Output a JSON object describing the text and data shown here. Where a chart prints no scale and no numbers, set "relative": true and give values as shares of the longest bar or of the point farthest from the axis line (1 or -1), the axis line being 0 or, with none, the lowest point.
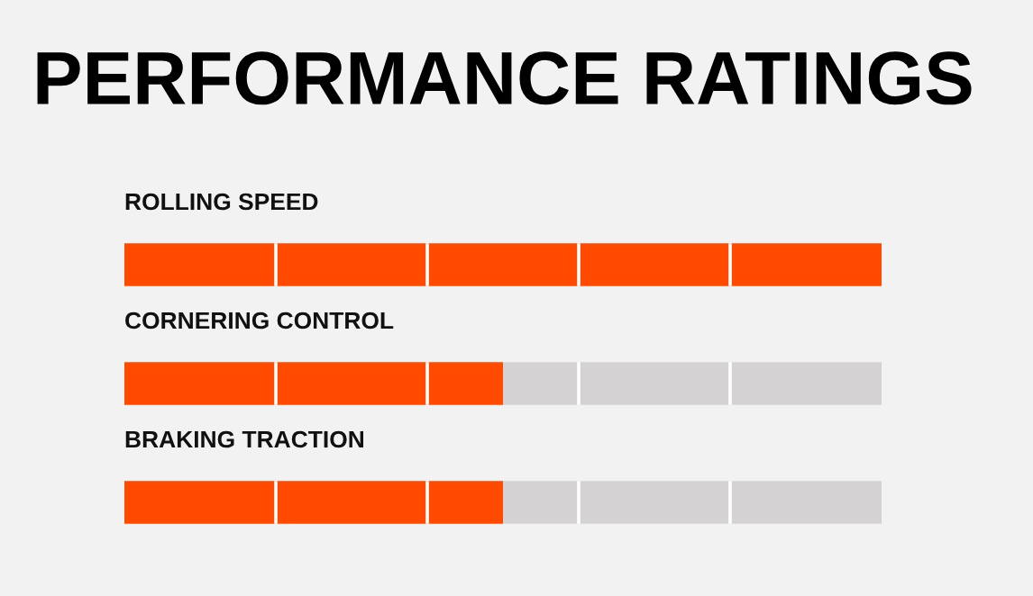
{
  "chart_data": {
    "type": "bar",
    "orientation": "horizontal",
    "stacked": true,
    "relative": true,
    "title": "PERFORMANCE RATINGS",
    "categories": [
      "ROLLING SPEED",
      "CORNERING CONTROL",
      "BRAKING TRACTION"
    ],
    "series": [
      {
        "color": "#ff4a00",
        "values": [
          1,
          0.5,
          0.5
        ]
      },
      {
        "color": "#d4d2d2",
        "values": [
          0,
          0.5,
          0.5
        ]
      }
    ]
  }
}
